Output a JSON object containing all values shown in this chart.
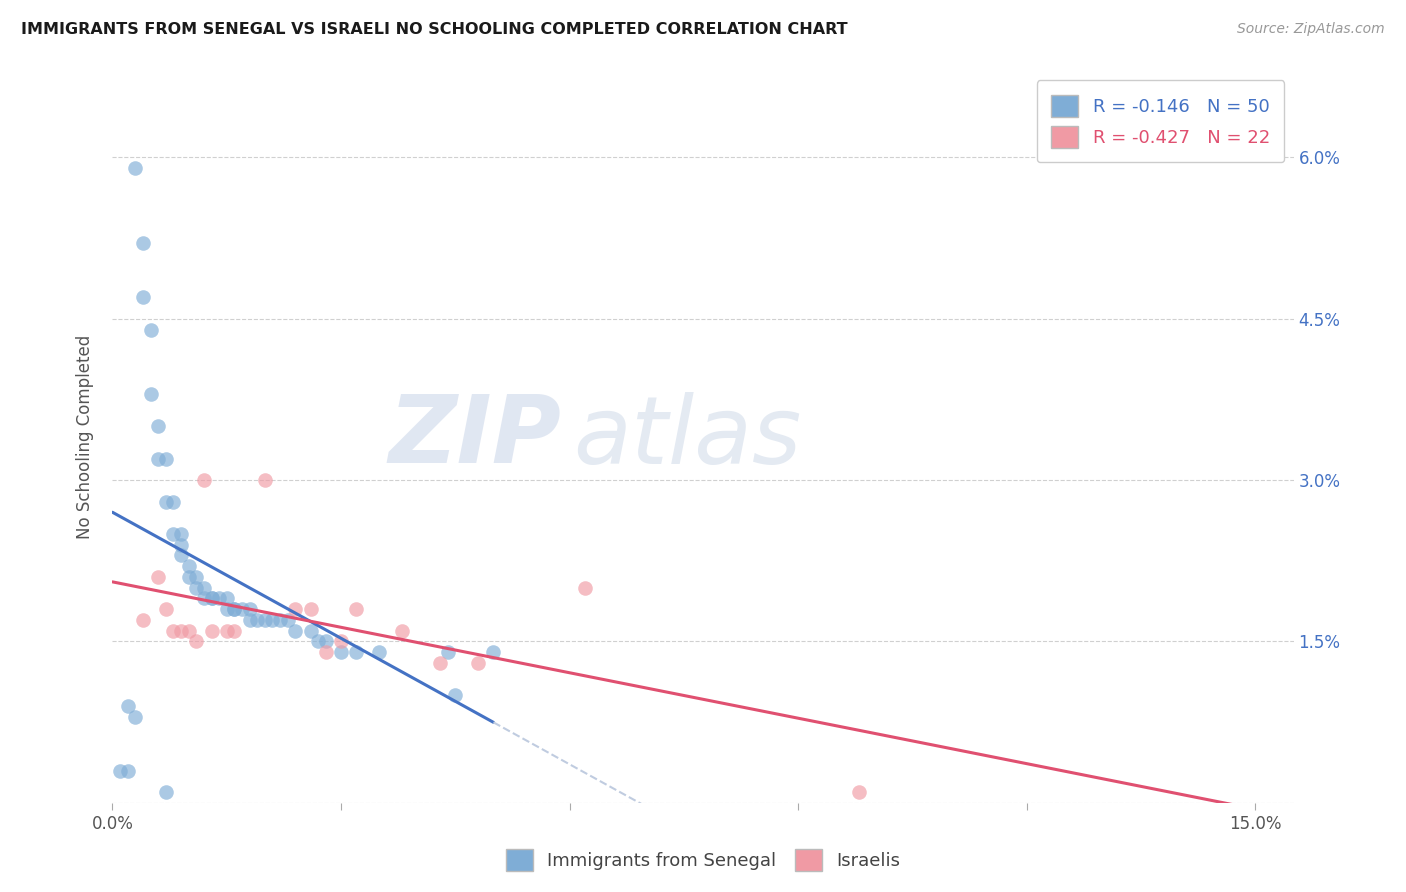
{
  "title": "IMMIGRANTS FROM SENEGAL VS ISRAELI NO SCHOOLING COMPLETED CORRELATION CHART",
  "source": "Source: ZipAtlas.com",
  "ylabel": "No Schooling Completed",
  "legend_blue_r": "-0.146",
  "legend_blue_n": "50",
  "legend_pink_r": "-0.427",
  "legend_pink_n": "22",
  "legend_label_blue": "Immigrants from Senegal",
  "legend_label_pink": "Israelis",
  "xlim": [
    0.0,
    0.155
  ],
  "ylim": [
    0.0,
    0.068
  ],
  "xticks": [
    0.0,
    0.03,
    0.06,
    0.09,
    0.12,
    0.15
  ],
  "xtick_labels_show": [
    "0.0%",
    "",
    "",
    "",
    "",
    "15.0%"
  ],
  "yticks": [
    0.0,
    0.015,
    0.03,
    0.045,
    0.06
  ],
  "ytick_labels_right": [
    "",
    "1.5%",
    "3.0%",
    "4.5%",
    "6.0%"
  ],
  "blue_color": "#7fadd6",
  "pink_color": "#f09aa4",
  "trendline_blue_color": "#4472c4",
  "trendline_pink_color": "#e05070",
  "trendline_ext_color": "#c0cce0",
  "blue_x": [
    0.001,
    0.002,
    0.003,
    0.004,
    0.004,
    0.005,
    0.005,
    0.006,
    0.006,
    0.007,
    0.007,
    0.008,
    0.008,
    0.009,
    0.009,
    0.009,
    0.01,
    0.01,
    0.011,
    0.011,
    0.012,
    0.012,
    0.013,
    0.013,
    0.014,
    0.015,
    0.015,
    0.016,
    0.016,
    0.017,
    0.018,
    0.018,
    0.019,
    0.02,
    0.021,
    0.022,
    0.023,
    0.024,
    0.026,
    0.027,
    0.028,
    0.03,
    0.032,
    0.035,
    0.044,
    0.045,
    0.05,
    0.002,
    0.003,
    0.007
  ],
  "blue_y": [
    0.003,
    0.003,
    0.059,
    0.052,
    0.047,
    0.044,
    0.038,
    0.035,
    0.032,
    0.032,
    0.028,
    0.028,
    0.025,
    0.025,
    0.024,
    0.023,
    0.022,
    0.021,
    0.021,
    0.02,
    0.02,
    0.019,
    0.019,
    0.019,
    0.019,
    0.019,
    0.018,
    0.018,
    0.018,
    0.018,
    0.018,
    0.017,
    0.017,
    0.017,
    0.017,
    0.017,
    0.017,
    0.016,
    0.016,
    0.015,
    0.015,
    0.014,
    0.014,
    0.014,
    0.014,
    0.01,
    0.014,
    0.009,
    0.008,
    0.001
  ],
  "pink_x": [
    0.004,
    0.006,
    0.007,
    0.008,
    0.009,
    0.01,
    0.011,
    0.012,
    0.013,
    0.015,
    0.016,
    0.02,
    0.024,
    0.026,
    0.028,
    0.03,
    0.032,
    0.038,
    0.043,
    0.048,
    0.062,
    0.098
  ],
  "pink_y": [
    0.017,
    0.021,
    0.018,
    0.016,
    0.016,
    0.016,
    0.015,
    0.03,
    0.016,
    0.016,
    0.016,
    0.03,
    0.018,
    0.018,
    0.014,
    0.015,
    0.018,
    0.016,
    0.013,
    0.013,
    0.02,
    0.001
  ],
  "blue_trendline_x0": 0.0,
  "blue_trendline_x_solid_end": 0.05,
  "blue_trendline_x_end": 0.155,
  "pink_trendline_x0": 0.0,
  "pink_trendline_x_solid_end": 0.155,
  "pink_trendline_x_end": 0.155
}
